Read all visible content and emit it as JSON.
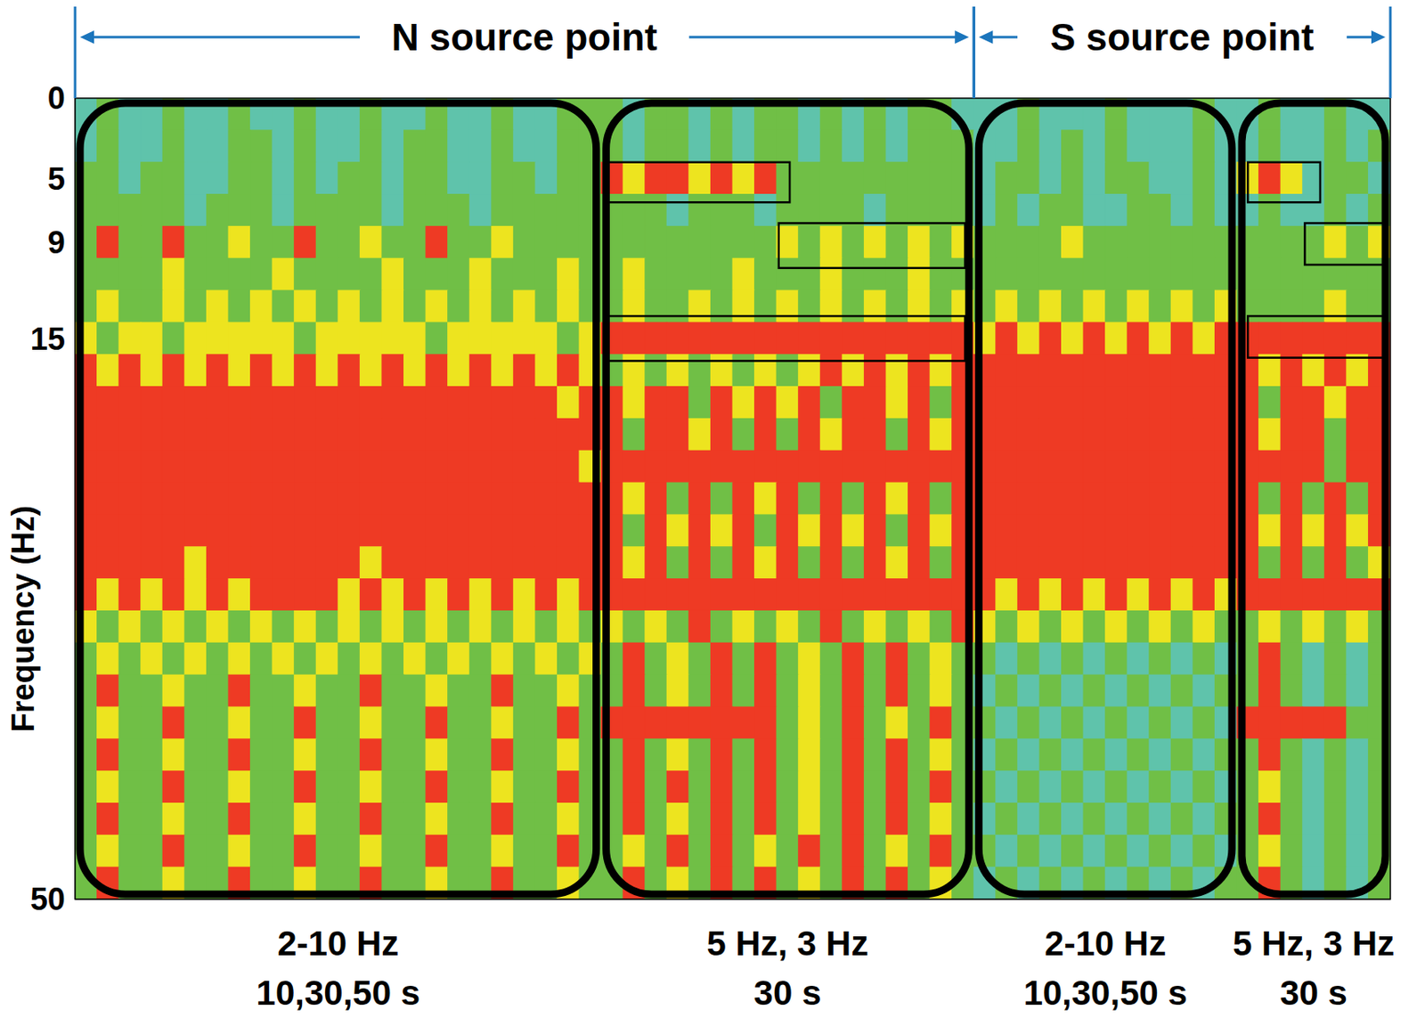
{
  "chart_data": {
    "type": "heatmap",
    "y_label": "Frequency (Hz)",
    "ylim": [
      50,
      0
    ],
    "yticks": [
      0,
      5,
      9,
      15,
      50
    ],
    "xlim": [
      0,
      60
    ],
    "tick_labels": "y",
    "grid": false,
    "colors": [
      "#5fc3ab",
      "#70bf46",
      "#ede41f",
      "#ee3a24"
    ],
    "x_edges": [
      0,
      1,
      2,
      3,
      4,
      5,
      6,
      7,
      8,
      9,
      10,
      11,
      12,
      13,
      14,
      15,
      16,
      17,
      18,
      19,
      20,
      21,
      22,
      23,
      24,
      25,
      26,
      27,
      28,
      29,
      30,
      31,
      32,
      33,
      34,
      35,
      36,
      37,
      38,
      39,
      40,
      41,
      42,
      43,
      44,
      45,
      46,
      47,
      48,
      49,
      50,
      51,
      52,
      53,
      54,
      55,
      56,
      57,
      58,
      59,
      60
    ],
    "y_edges": [
      0,
      2,
      4,
      6,
      8,
      10,
      12,
      14,
      16,
      18,
      20,
      22,
      24,
      26,
      28,
      30,
      32,
      34,
      36,
      38,
      40,
      42,
      44,
      46,
      48,
      50
    ],
    "cells": [
      [
        0,
        1,
        0,
        0,
        1,
        0,
        0,
        1,
        0,
        0,
        1,
        0,
        0,
        1,
        0,
        0,
        1,
        0,
        0,
        1,
        0,
        0,
        1,
        1,
        1,
        0,
        1,
        1,
        0,
        1,
        0,
        1,
        1,
        0,
        1,
        0,
        1,
        0,
        1,
        1,
        0,
        0,
        0,
        1,
        0,
        0,
        0,
        1,
        0,
        0,
        0,
        1,
        0,
        0,
        1,
        0,
        0,
        1,
        0,
        0
      ],
      [
        0,
        1,
        0,
        0,
        1,
        0,
        0,
        1,
        1,
        0,
        1,
        0,
        0,
        1,
        0,
        1,
        1,
        0,
        0,
        1,
        0,
        0,
        1,
        1,
        1,
        0,
        1,
        1,
        0,
        1,
        0,
        1,
        1,
        0,
        1,
        0,
        1,
        0,
        1,
        1,
        1,
        0,
        0,
        1,
        0,
        1,
        0,
        1,
        0,
        0,
        0,
        1,
        0,
        0,
        1,
        0,
        0,
        1,
        0,
        1
      ],
      [
        1,
        1,
        0,
        1,
        1,
        0,
        0,
        1,
        1,
        0,
        1,
        0,
        1,
        1,
        0,
        1,
        1,
        0,
        0,
        1,
        1,
        0,
        1,
        1,
        3,
        2,
        3,
        3,
        2,
        3,
        2,
        3,
        1,
        1,
        1,
        1,
        1,
        1,
        1,
        1,
        1,
        0,
        1,
        1,
        0,
        1,
        0,
        1,
        1,
        0,
        0,
        1,
        0,
        2,
        3,
        2,
        0,
        1,
        1,
        0
      ],
      [
        1,
        1,
        1,
        1,
        1,
        0,
        1,
        1,
        1,
        0,
        1,
        1,
        1,
        1,
        0,
        1,
        1,
        1,
        0,
        1,
        1,
        1,
        1,
        1,
        1,
        1,
        1,
        0,
        1,
        1,
        1,
        0,
        1,
        1,
        1,
        1,
        0,
        1,
        1,
        1,
        1,
        0,
        1,
        0,
        1,
        1,
        0,
        0,
        1,
        1,
        0,
        1,
        0,
        0,
        1,
        0,
        0,
        1,
        0,
        1
      ],
      [
        1,
        3,
        1,
        1,
        3,
        1,
        1,
        2,
        1,
        1,
        3,
        1,
        1,
        2,
        1,
        1,
        3,
        1,
        1,
        2,
        1,
        1,
        1,
        1,
        1,
        1,
        1,
        1,
        1,
        1,
        1,
        1,
        2,
        1,
        2,
        1,
        2,
        1,
        2,
        1,
        2,
        1,
        1,
        1,
        1,
        2,
        1,
        1,
        1,
        1,
        1,
        1,
        1,
        1,
        1,
        1,
        1,
        2,
        1,
        2
      ],
      [
        1,
        1,
        1,
        1,
        2,
        1,
        1,
        1,
        1,
        2,
        1,
        1,
        1,
        1,
        2,
        1,
        1,
        1,
        2,
        1,
        1,
        1,
        2,
        1,
        1,
        2,
        1,
        1,
        1,
        1,
        2,
        1,
        1,
        1,
        2,
        1,
        1,
        1,
        2,
        1,
        1,
        1,
        1,
        1,
        1,
        1,
        1,
        1,
        1,
        1,
        1,
        1,
        1,
        1,
        1,
        1,
        1,
        1,
        1,
        1
      ],
      [
        1,
        2,
        1,
        1,
        2,
        1,
        2,
        1,
        2,
        1,
        2,
        1,
        2,
        1,
        2,
        1,
        2,
        1,
        2,
        1,
        2,
        1,
        2,
        1,
        1,
        2,
        1,
        1,
        2,
        1,
        2,
        1,
        2,
        1,
        2,
        1,
        2,
        1,
        2,
        1,
        2,
        1,
        2,
        1,
        2,
        1,
        2,
        1,
        2,
        1,
        2,
        1,
        2,
        1,
        1,
        1,
        1,
        2,
        1,
        1
      ],
      [
        2,
        1,
        2,
        2,
        1,
        2,
        2,
        2,
        2,
        2,
        1,
        2,
        2,
        2,
        2,
        2,
        1,
        2,
        2,
        2,
        2,
        2,
        1,
        2,
        3,
        3,
        3,
        3,
        3,
        3,
        3,
        3,
        3,
        3,
        3,
        3,
        3,
        3,
        3,
        3,
        3,
        2,
        3,
        2,
        3,
        2,
        3,
        2,
        3,
        2,
        3,
        2,
        3,
        3,
        3,
        3,
        3,
        3,
        3,
        3
      ],
      [
        3,
        2,
        3,
        2,
        3,
        2,
        3,
        2,
        3,
        2,
        3,
        2,
        3,
        2,
        3,
        2,
        3,
        2,
        3,
        2,
        3,
        2,
        3,
        2,
        1,
        2,
        1,
        2,
        1,
        2,
        1,
        2,
        1,
        2,
        3,
        2,
        3,
        2,
        3,
        2,
        3,
        3,
        3,
        3,
        3,
        3,
        3,
        3,
        3,
        3,
        3,
        3,
        3,
        3,
        2,
        3,
        2,
        3,
        2,
        3
      ],
      [
        3,
        3,
        3,
        3,
        3,
        3,
        3,
        3,
        3,
        3,
        3,
        3,
        3,
        3,
        3,
        3,
        3,
        3,
        3,
        3,
        3,
        3,
        2,
        3,
        3,
        2,
        3,
        3,
        1,
        3,
        2,
        3,
        2,
        3,
        1,
        3,
        3,
        2,
        3,
        1,
        3,
        3,
        3,
        3,
        3,
        3,
        3,
        3,
        3,
        3,
        3,
        3,
        3,
        3,
        1,
        3,
        3,
        2,
        3,
        3
      ],
      [
        3,
        3,
        3,
        3,
        3,
        3,
        3,
        3,
        3,
        3,
        3,
        3,
        3,
        3,
        3,
        3,
        3,
        3,
        3,
        3,
        3,
        3,
        3,
        3,
        3,
        1,
        3,
        3,
        2,
        3,
        1,
        3,
        1,
        3,
        2,
        3,
        3,
        1,
        3,
        2,
        3,
        3,
        3,
        3,
        3,
        3,
        3,
        3,
        3,
        3,
        3,
        3,
        3,
        3,
        2,
        3,
        3,
        1,
        3,
        3
      ],
      [
        3,
        3,
        3,
        3,
        3,
        3,
        3,
        3,
        3,
        3,
        3,
        3,
        3,
        3,
        3,
        3,
        3,
        3,
        3,
        3,
        3,
        3,
        3,
        2,
        3,
        3,
        3,
        3,
        3,
        3,
        3,
        3,
        3,
        3,
        3,
        3,
        3,
        3,
        3,
        3,
        3,
        3,
        3,
        3,
        3,
        3,
        3,
        3,
        3,
        3,
        3,
        3,
        3,
        3,
        3,
        3,
        3,
        1,
        3,
        3
      ],
      [
        3,
        3,
        3,
        3,
        3,
        3,
        3,
        3,
        3,
        3,
        3,
        3,
        3,
        3,
        3,
        3,
        3,
        3,
        3,
        3,
        3,
        3,
        3,
        3,
        3,
        2,
        3,
        1,
        3,
        1,
        3,
        2,
        3,
        1,
        3,
        1,
        3,
        2,
        3,
        1,
        3,
        3,
        3,
        3,
        3,
        3,
        3,
        3,
        3,
        3,
        3,
        3,
        3,
        3,
        1,
        3,
        1,
        3,
        1,
        3
      ],
      [
        3,
        3,
        3,
        3,
        3,
        3,
        3,
        3,
        3,
        3,
        3,
        3,
        3,
        3,
        3,
        3,
        3,
        3,
        3,
        3,
        3,
        3,
        3,
        3,
        3,
        1,
        3,
        2,
        3,
        2,
        3,
        1,
        3,
        2,
        3,
        2,
        3,
        1,
        3,
        2,
        3,
        3,
        3,
        3,
        3,
        3,
        3,
        3,
        3,
        3,
        3,
        3,
        3,
        3,
        2,
        3,
        2,
        3,
        2,
        3
      ],
      [
        3,
        3,
        3,
        3,
        3,
        2,
        3,
        3,
        3,
        3,
        3,
        3,
        3,
        2,
        3,
        3,
        3,
        3,
        3,
        3,
        3,
        3,
        3,
        3,
        3,
        2,
        3,
        1,
        3,
        1,
        3,
        2,
        3,
        1,
        3,
        1,
        3,
        2,
        3,
        1,
        3,
        3,
        3,
        3,
        3,
        3,
        3,
        3,
        3,
        3,
        3,
        3,
        3,
        3,
        1,
        3,
        1,
        3,
        1,
        2
      ],
      [
        3,
        2,
        3,
        2,
        3,
        2,
        3,
        2,
        3,
        3,
        3,
        3,
        2,
        3,
        2,
        3,
        2,
        3,
        2,
        3,
        2,
        3,
        2,
        3,
        3,
        3,
        3,
        3,
        3,
        3,
        3,
        3,
        3,
        3,
        3,
        3,
        3,
        3,
        3,
        3,
        3,
        3,
        2,
        3,
        2,
        3,
        2,
        3,
        2,
        3,
        2,
        3,
        2,
        3,
        3,
        3,
        3,
        3,
        3,
        3
      ],
      [
        2,
        1,
        2,
        1,
        2,
        1,
        2,
        1,
        2,
        1,
        2,
        1,
        2,
        1,
        2,
        1,
        2,
        1,
        2,
        1,
        2,
        1,
        2,
        1,
        2,
        1,
        2,
        1,
        3,
        1,
        2,
        1,
        2,
        1,
        3,
        1,
        2,
        1,
        2,
        1,
        3,
        2,
        1,
        2,
        1,
        2,
        1,
        2,
        1,
        2,
        1,
        2,
        1,
        1,
        2,
        1,
        2,
        1,
        2,
        1
      ],
      [
        1,
        2,
        1,
        2,
        1,
        2,
        1,
        2,
        1,
        2,
        1,
        2,
        1,
        2,
        1,
        2,
        1,
        2,
        1,
        2,
        1,
        2,
        1,
        2,
        1,
        3,
        1,
        2,
        1,
        3,
        1,
        3,
        1,
        2,
        1,
        3,
        1,
        3,
        1,
        2,
        1,
        1,
        0,
        1,
        0,
        1,
        0,
        1,
        0,
        1,
        0,
        1,
        0,
        1,
        3,
        1,
        0,
        1,
        0,
        1
      ],
      [
        1,
        3,
        1,
        1,
        2,
        1,
        1,
        3,
        1,
        1,
        2,
        1,
        1,
        3,
        1,
        1,
        2,
        1,
        1,
        3,
        1,
        1,
        2,
        1,
        1,
        3,
        1,
        2,
        1,
        3,
        1,
        3,
        1,
        2,
        1,
        3,
        1,
        3,
        1,
        2,
        1,
        0,
        1,
        0,
        1,
        0,
        1,
        0,
        1,
        0,
        1,
        0,
        1,
        1,
        3,
        1,
        0,
        1,
        0,
        1
      ],
      [
        1,
        2,
        1,
        1,
        3,
        1,
        1,
        2,
        1,
        1,
        3,
        1,
        1,
        2,
        1,
        1,
        3,
        1,
        1,
        2,
        1,
        1,
        3,
        1,
        3,
        3,
        3,
        3,
        3,
        3,
        3,
        3,
        1,
        2,
        1,
        3,
        1,
        2,
        1,
        3,
        1,
        1,
        0,
        1,
        0,
        1,
        0,
        1,
        0,
        1,
        0,
        1,
        0,
        3,
        3,
        3,
        3,
        3,
        1,
        1
      ],
      [
        1,
        3,
        1,
        1,
        2,
        1,
        1,
        3,
        1,
        1,
        2,
        1,
        1,
        3,
        1,
        1,
        2,
        1,
        1,
        3,
        1,
        1,
        2,
        1,
        1,
        3,
        1,
        2,
        1,
        3,
        1,
        3,
        1,
        2,
        1,
        3,
        1,
        3,
        1,
        2,
        1,
        0,
        1,
        0,
        1,
        0,
        1,
        0,
        1,
        0,
        1,
        0,
        1,
        1,
        3,
        1,
        0,
        1,
        0,
        1
      ],
      [
        1,
        2,
        1,
        1,
        3,
        1,
        1,
        2,
        1,
        1,
        3,
        1,
        1,
        2,
        1,
        1,
        3,
        1,
        1,
        2,
        1,
        1,
        3,
        1,
        1,
        3,
        1,
        3,
        1,
        3,
        1,
        3,
        1,
        2,
        1,
        3,
        1,
        3,
        1,
        3,
        1,
        1,
        0,
        1,
        0,
        1,
        0,
        1,
        0,
        1,
        0,
        1,
        0,
        1,
        2,
        1,
        0,
        1,
        0,
        1
      ],
      [
        1,
        3,
        1,
        1,
        2,
        1,
        1,
        3,
        1,
        1,
        2,
        1,
        1,
        3,
        1,
        1,
        2,
        1,
        1,
        3,
        1,
        1,
        2,
        1,
        1,
        3,
        1,
        2,
        1,
        3,
        1,
        3,
        1,
        2,
        1,
        3,
        1,
        3,
        1,
        2,
        1,
        0,
        1,
        0,
        1,
        0,
        1,
        0,
        1,
        0,
        1,
        0,
        1,
        1,
        3,
        1,
        0,
        1,
        0,
        1
      ],
      [
        1,
        2,
        1,
        1,
        3,
        1,
        1,
        2,
        1,
        1,
        3,
        1,
        1,
        2,
        1,
        1,
        3,
        1,
        1,
        2,
        1,
        1,
        3,
        1,
        1,
        2,
        1,
        3,
        1,
        3,
        1,
        2,
        1,
        3,
        1,
        3,
        1,
        2,
        1,
        3,
        1,
        1,
        0,
        1,
        0,
        1,
        0,
        1,
        0,
        1,
        0,
        1,
        0,
        1,
        2,
        1,
        0,
        1,
        0,
        1
      ],
      [
        1,
        3,
        1,
        1,
        2,
        1,
        1,
        3,
        1,
        1,
        2,
        1,
        1,
        3,
        1,
        1,
        2,
        1,
        1,
        3,
        1,
        1,
        2,
        1,
        1,
        3,
        1,
        2,
        1,
        3,
        1,
        3,
        1,
        2,
        1,
        3,
        1,
        3,
        1,
        2,
        1,
        0,
        1,
        0,
        1,
        0,
        1,
        0,
        1,
        0,
        1,
        0,
        1,
        1,
        3,
        1,
        0,
        1,
        0,
        1
      ]
    ],
    "sources": [
      {
        "label": "N source point",
        "x": [
          0,
          41
        ]
      },
      {
        "label": "S source point",
        "x": [
          41,
          60
        ]
      }
    ],
    "segments": [
      {
        "label": [
          "2-10 Hz",
          "10,30,50 s"
        ],
        "x": [
          0,
          24
        ]
      },
      {
        "label": [
          "5 Hz, 3 Hz",
          "30 s"
        ],
        "x": [
          24,
          41
        ]
      },
      {
        "label": [
          "2-10 Hz",
          "10,30,50 s"
        ],
        "x": [
          41,
          53
        ]
      },
      {
        "label": [
          "5 Hz, 3 Hz",
          "30 s"
        ],
        "x": [
          53,
          60
        ]
      }
    ],
    "highlights": [
      {
        "x": [
          24.3,
          32.6
        ],
        "y": [
          4,
          6.5
        ]
      },
      {
        "x": [
          32.1,
          40.6
        ],
        "y": [
          7.8,
          10.6
        ]
      },
      {
        "x": [
          24.3,
          40.6
        ],
        "y": [
          13.6,
          16.4
        ]
      },
      {
        "x": [
          53.5,
          56.8
        ],
        "y": [
          4,
          6.5
        ]
      },
      {
        "x": [
          56.1,
          59.7
        ],
        "y": [
          7.8,
          10.4
        ]
      },
      {
        "x": [
          53.5,
          59.7
        ],
        "y": [
          13.6,
          16.2
        ]
      }
    ]
  }
}
